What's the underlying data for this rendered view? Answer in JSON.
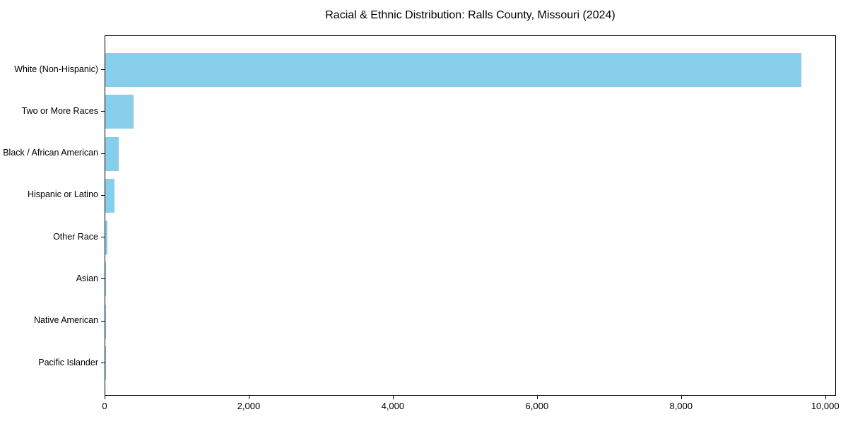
{
  "title": "Racial & Ethnic Distribution: Ralls County, Missouri (2024)",
  "chart_data": {
    "type": "bar",
    "orientation": "horizontal",
    "title": "Racial & Ethnic Distribution: Ralls County, Missouri (2024)",
    "categories": [
      "White (Non-Hispanic)",
      "Two or More Races",
      "Black / African American",
      "Hispanic or Latino",
      "Other Race",
      "Asian",
      "Native American",
      "Pacific Islander"
    ],
    "values": [
      9655,
      392,
      190,
      128,
      34,
      12,
      4,
      1
    ],
    "xlabel": "",
    "ylabel": "",
    "xlim": [
      0,
      10150
    ],
    "x_ticks": [
      0,
      2000,
      4000,
      6000,
      8000,
      10000
    ],
    "x_tick_labels": [
      "0",
      "2,000",
      "4,000",
      "6,000",
      "8,000",
      "10,000"
    ],
    "bar_color": "#87CEEB",
    "axis_color": "#000000",
    "grid": false,
    "legend_position": "none"
  }
}
